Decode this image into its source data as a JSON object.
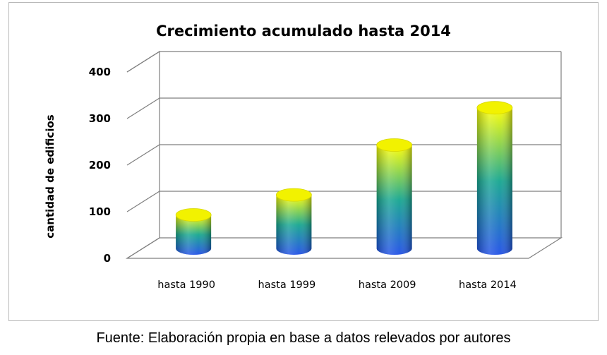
{
  "chart_data": {
    "type": "bar",
    "title": "Crecimiento acumulado  hasta 2014",
    "ylabel": "cantidad de edificios",
    "xlabel": "",
    "categories": [
      "hasta 1990",
      "hasta 1999",
      "hasta 2009",
      "hasta 2014"
    ],
    "values": [
      72,
      115,
      222,
      302
    ],
    "ylim": [
      0,
      400
    ],
    "yticks": [
      "0",
      "100",
      "200",
      "300",
      "400"
    ],
    "grid": true,
    "style": "3d-cylinder",
    "gradient_colors": [
      "#1f4fe6",
      "#14a58f",
      "#ffff00"
    ]
  },
  "caption": "Fuente: Elaboración propia en base a datos relevados por autores"
}
